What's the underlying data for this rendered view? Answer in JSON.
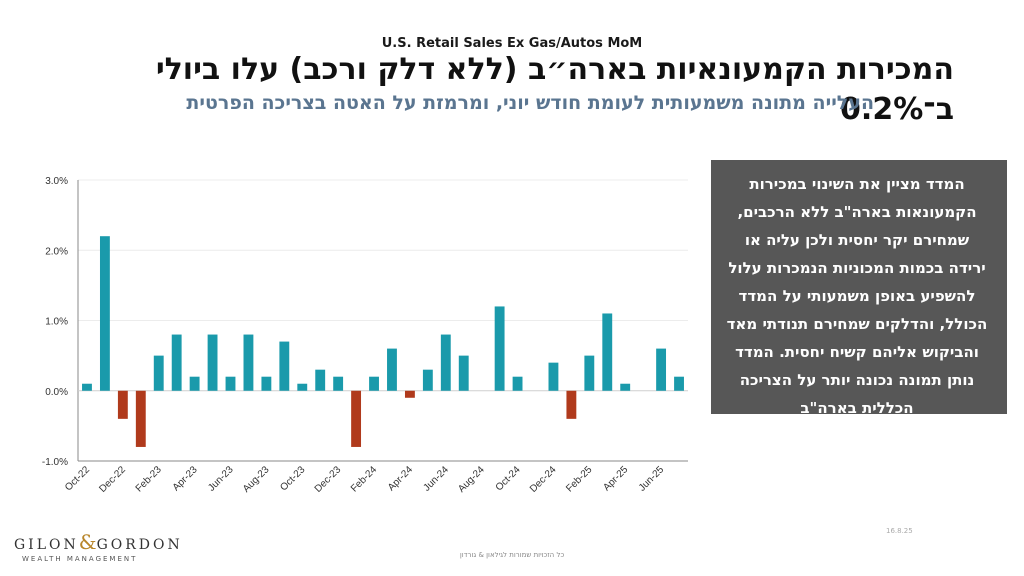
{
  "header": {
    "chart_title": "U.S. Retail Sales Ex Gas/Autos MoM",
    "main_title": "המכירות הקמעונאיות בארה״ב (ללא דלק ורכב) עלו ביולי ב־0.2%",
    "subtitle": "העלייה מתונה משמעותית לעומת חודש יוני, ומרמזת על האטה בצריכה הפרטית"
  },
  "info_box": {
    "text": "המדד מציין את השינוי במכירות הקמעונאות בארה\"ב ללא הרכבים, שמחירם יקר יחסית ולכן עליה או ירידה בכמות המכוניות הנמכרות עלול להשפיע באופן משמעותי על המדד הכולל, והדלקים שמחירם תנודתי מאד והביקוש אליהם קשיח יחסית. המדד נותן תמונה נכונה יותר על הצריכה הכללית בארה\"ב"
  },
  "footer": {
    "logo_left": "GILON",
    "logo_amp": "&",
    "logo_right": "GORDON",
    "logo_sub": "WEALTH MANAGEMENT",
    "copyright": "כל הזכויות שמורות לגילאון & גורדון",
    "date": "16.8.25"
  },
  "colors": {
    "positive": "#1a9aab",
    "negative": "#b03a1c",
    "info_box_bg": "#575757",
    "subtitle": "#5a7590"
  },
  "chart_data": {
    "type": "bar",
    "title": "U.S. Retail Sales Ex Gas/Autos MoM",
    "categories": [
      "Oct-22",
      "Nov-22",
      "Dec-22",
      "Jan-23",
      "Feb-23",
      "Mar-23",
      "Apr-23",
      "May-23",
      "Jun-23",
      "Jul-23",
      "Aug-23",
      "Sep-23",
      "Oct-23",
      "Nov-23",
      "Dec-23",
      "Jan-24",
      "Feb-24",
      "Mar-24",
      "Apr-24",
      "May-24",
      "Jun-24",
      "Jul-24",
      "Aug-24",
      "Sep-24",
      "Oct-24",
      "Nov-24",
      "Dec-24",
      "Jan-25",
      "Feb-25",
      "Mar-25",
      "Apr-25",
      "May-25",
      "Jun-25",
      "Jul-25"
    ],
    "values": [
      0.1,
      2.2,
      -0.4,
      -0.8,
      0.5,
      0.8,
      0.2,
      0.8,
      0.2,
      0.8,
      0.2,
      0.7,
      0.1,
      0.3,
      0.2,
      -0.8,
      0.2,
      0.6,
      -0.1,
      0.3,
      0.8,
      0.5,
      null,
      1.2,
      0.2,
      null,
      0.4,
      -0.4,
      0.5,
      1.1,
      0.1,
      null,
      0.6,
      0.2
    ],
    "x_tick_labels": [
      "Oct-22",
      "Dec-22",
      "Feb-23",
      "Apr-23",
      "Jun-23",
      "Aug-23",
      "Oct-23",
      "Dec-23",
      "Feb-24",
      "Apr-24",
      "Jun-24",
      "Aug-24",
      "Oct-24",
      "Dec-24",
      "Feb-25",
      "Apr-25",
      "Jun-25"
    ],
    "y_ticks": [
      "-1.0%",
      "0.0%",
      "1.0%",
      "2.0%",
      "3.0%"
    ],
    "ylim": [
      -1.0,
      3.0
    ],
    "y_unit": "%",
    "grid": true,
    "legend": "none"
  }
}
